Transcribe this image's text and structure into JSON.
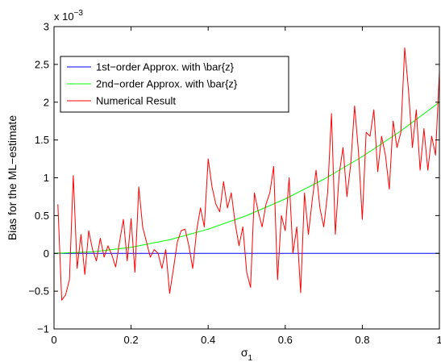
{
  "chart_data": {
    "type": "line",
    "xlabel": "σ",
    "xlabel_subscript": "1",
    "ylabel": "Bias for the ML−estimate",
    "y_multiplier": "x 10",
    "y_multiplier_exponent": "−3",
    "xlim": [
      0,
      1
    ],
    "ylim": [
      -1,
      3
    ],
    "x_ticks": [
      0,
      0.2,
      0.4,
      0.6,
      0.8,
      1
    ],
    "x_tick_labels": [
      "0",
      "0.2",
      "0.4",
      "0.6",
      "0.8",
      "1"
    ],
    "y_ticks": [
      -1,
      -0.5,
      0,
      0.5,
      1,
      1.5,
      2,
      2.5,
      3
    ],
    "y_tick_labels": [
      "−1",
      "−0.5",
      "0",
      "0.5",
      "1",
      "1.5",
      "2",
      "2.5",
      "3"
    ],
    "grid": false,
    "legend_position": "top-left",
    "series": [
      {
        "name": "1st−order Approx. with \\bar{z}",
        "color": "#0000ff",
        "x": [
          0,
          1
        ],
        "y": [
          0,
          0
        ]
      },
      {
        "name": "2nd−order Approx. with \\bar{z}",
        "color": "#00ff00",
        "x": [
          0,
          0.1,
          0.2,
          0.3,
          0.4,
          0.5,
          0.6,
          0.7,
          0.8,
          0.9,
          1.0
        ],
        "y": [
          0,
          0.02,
          0.08,
          0.18,
          0.32,
          0.5,
          0.72,
          0.98,
          1.28,
          1.62,
          2.0
        ]
      },
      {
        "name": "Numerical Result",
        "color": "#ff0000",
        "x": [
          0.01,
          0.02,
          0.03,
          0.04,
          0.05,
          0.06,
          0.07,
          0.08,
          0.09,
          0.1,
          0.11,
          0.12,
          0.13,
          0.14,
          0.15,
          0.16,
          0.17,
          0.18,
          0.19,
          0.2,
          0.21,
          0.22,
          0.23,
          0.24,
          0.25,
          0.26,
          0.27,
          0.28,
          0.29,
          0.3,
          0.31,
          0.32,
          0.33,
          0.34,
          0.35,
          0.36,
          0.37,
          0.38,
          0.39,
          0.4,
          0.41,
          0.42,
          0.43,
          0.44,
          0.45,
          0.46,
          0.47,
          0.48,
          0.49,
          0.5,
          0.51,
          0.52,
          0.53,
          0.54,
          0.55,
          0.56,
          0.57,
          0.58,
          0.59,
          0.6,
          0.61,
          0.62,
          0.63,
          0.64,
          0.65,
          0.66,
          0.67,
          0.68,
          0.69,
          0.7,
          0.71,
          0.72,
          0.73,
          0.74,
          0.75,
          0.76,
          0.77,
          0.78,
          0.79,
          0.8,
          0.81,
          0.82,
          0.83,
          0.84,
          0.85,
          0.86,
          0.87,
          0.88,
          0.89,
          0.9,
          0.91,
          0.92,
          0.93,
          0.94,
          0.95,
          0.96,
          0.97,
          0.98,
          0.99,
          1.0
        ],
        "y": [
          0.65,
          -0.62,
          -0.55,
          -0.35,
          1.03,
          -0.2,
          0.25,
          -0.28,
          0.3,
          0.05,
          -0.1,
          0.2,
          -0.05,
          0.1,
          -0.02,
          -0.18,
          0.15,
          0.45,
          -0.1,
          0.46,
          -0.25,
          0.88,
          0.35,
          0.15,
          -0.05,
          0.05,
          0.0,
          -0.2,
          0.05,
          -0.53,
          -0.2,
          0.15,
          0.3,
          0.32,
          0.1,
          -0.2,
          0.3,
          0.6,
          0.35,
          1.25,
          0.88,
          0.65,
          0.55,
          0.95,
          0.6,
          0.8,
          0.4,
          0.1,
          0.35,
          -0.25,
          -0.45,
          0.8,
          0.55,
          0.35,
          0.65,
          0.8,
          1.15,
          -0.35,
          0.5,
          0.3,
          1.0,
          0.0,
          0.35,
          -0.52,
          0.8,
          0.25,
          0.7,
          1.1,
          0.6,
          0.35,
          0.8,
          1.85,
          0.25,
          1.05,
          1.4,
          0.75,
          1.18,
          1.95,
          1.35,
          0.45,
          1.6,
          1.55,
          1.9,
          1.08,
          1.55,
          1.3,
          0.85,
          1.75,
          1.4,
          1.6,
          2.72,
          2.15,
          1.4,
          1.9,
          1.1,
          1.65,
          1.1,
          1.55,
          1.3,
          2.4
        ]
      }
    ]
  }
}
